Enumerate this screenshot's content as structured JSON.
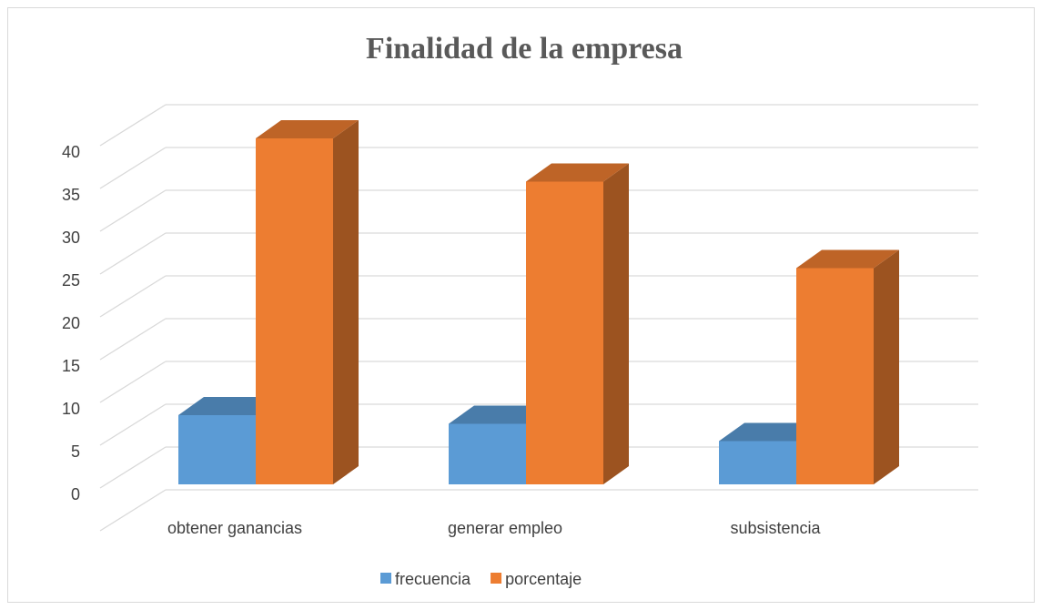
{
  "chart_data": {
    "type": "bar3d",
    "title": "Finalidad de la empresa",
    "categories": [
      "obtener ganancias",
      "generar empleo",
      "subsistencia"
    ],
    "series": [
      {
        "name": "frecuencia",
        "color": "#5b9bd5",
        "values": [
          8,
          7,
          5
        ]
      },
      {
        "name": "porcentaje",
        "color": "#ed7d31",
        "values": [
          40,
          35,
          25
        ]
      }
    ],
    "ylim": [
      0,
      45
    ],
    "yticks": [
      0,
      5,
      10,
      15,
      20,
      25,
      30,
      35,
      40
    ],
    "grid": true,
    "legend": "bottom"
  }
}
